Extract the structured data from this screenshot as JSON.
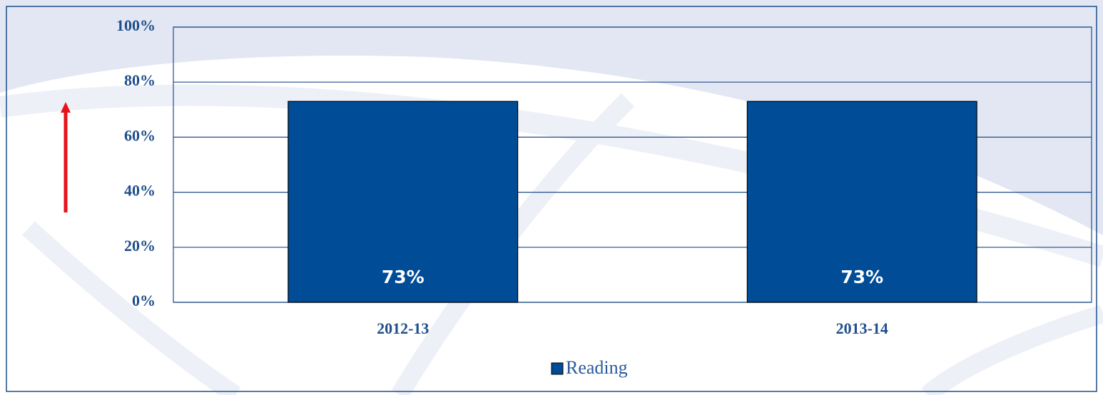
{
  "chart_data": {
    "type": "bar",
    "categories": [
      "2012-13",
      "2013-14"
    ],
    "series": [
      {
        "name": "Reading",
        "color": "#004c97",
        "values": [
          73,
          73
        ],
        "value_labels": [
          "73%",
          "73%"
        ]
      }
    ],
    "ylim": [
      0,
      100
    ],
    "yticks": [
      {
        "value": 0,
        "label": "0%"
      },
      {
        "value": 20,
        "label": "20%"
      },
      {
        "value": 40,
        "label": "40%"
      },
      {
        "value": 60,
        "label": "60%"
      },
      {
        "value": 80,
        "label": "80%"
      },
      {
        "value": 100,
        "label": "100%"
      }
    ],
    "grid": true,
    "legend": "bottom"
  }
}
